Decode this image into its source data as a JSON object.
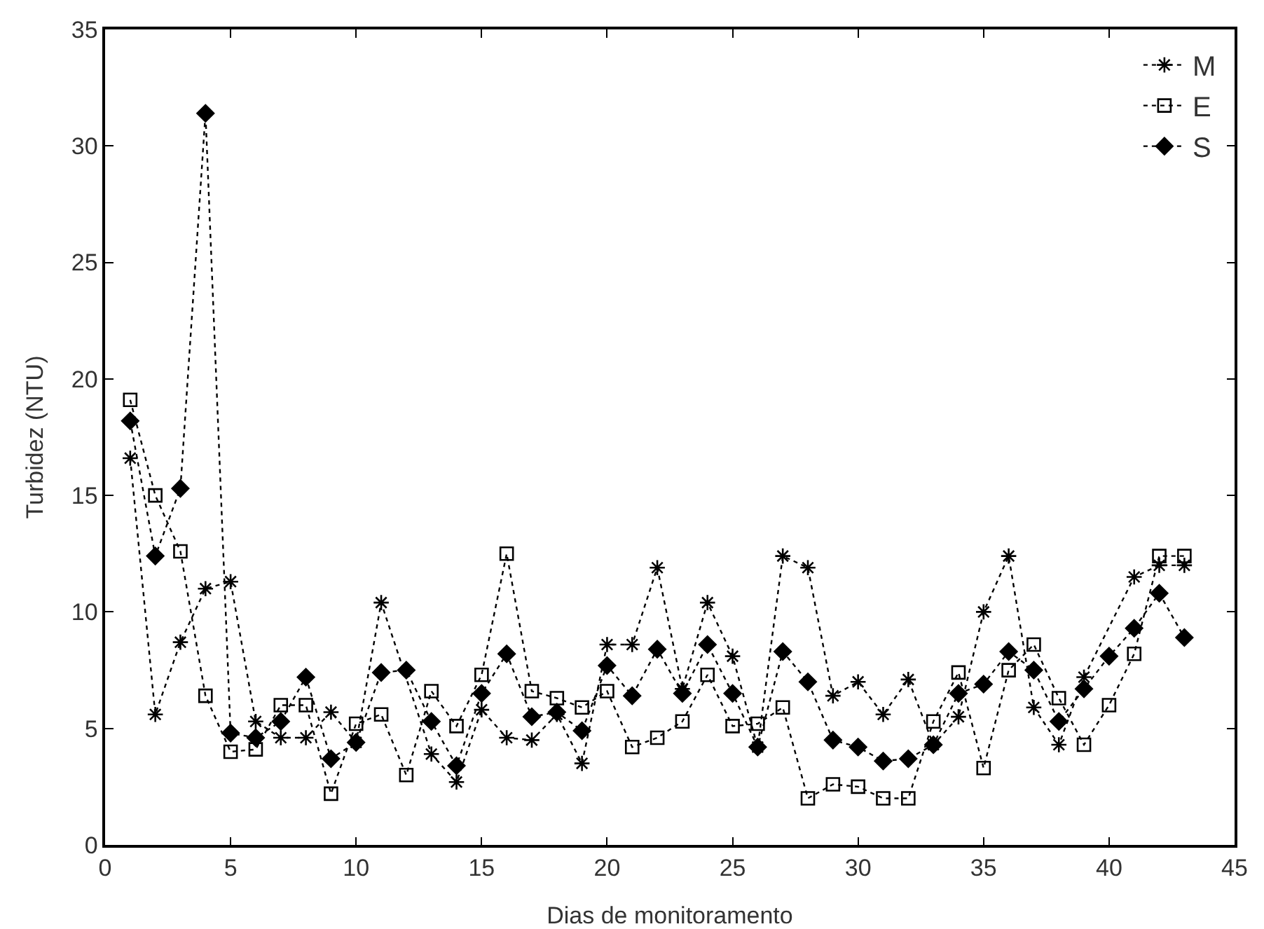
{
  "chart_data": {
    "type": "line",
    "xlabel": "Dias de monitoramento",
    "ylabel": "Turbidez (NTU)",
    "x": [
      1,
      2,
      3,
      4,
      5,
      6,
      7,
      8,
      9,
      10,
      11,
      12,
      13,
      14,
      15,
      16,
      17,
      18,
      19,
      20,
      21,
      22,
      23,
      24,
      25,
      26,
      27,
      28,
      29,
      30,
      31,
      32,
      33,
      34,
      35,
      36,
      37,
      38,
      39,
      40,
      41,
      42,
      43
    ],
    "xlim": [
      0,
      45
    ],
    "xticks": [
      0,
      5,
      10,
      15,
      20,
      25,
      30,
      35,
      40,
      45
    ],
    "ylim": [
      0,
      35
    ],
    "yticks": [
      0,
      5,
      10,
      15,
      20,
      25,
      30,
      35
    ],
    "grid": false,
    "legend": "top right",
    "line_style": "dotted",
    "series": [
      {
        "name": "M",
        "color": "#000000",
        "marker": "cross",
        "values": [
          16.6,
          5.6,
          8.7,
          11.0,
          11.3,
          5.3,
          4.6,
          4.6,
          5.7,
          4.4,
          10.4,
          null,
          3.9,
          2.7,
          5.8,
          4.6,
          4.5,
          5.6,
          3.5,
          8.6,
          8.6,
          11.9,
          6.7,
          10.4,
          8.1,
          4.2,
          12.4,
          11.9,
          6.4,
          7.0,
          5.6,
          7.1,
          4.3,
          5.5,
          10.0,
          12.4,
          5.9,
          4.3,
          7.2,
          null,
          11.5,
          12.0,
          12.0
        ]
      },
      {
        "name": "E",
        "color": "#000000",
        "marker": "square",
        "values": [
          19.1,
          15.0,
          12.6,
          6.4,
          4.0,
          4.1,
          6.0,
          6.0,
          2.2,
          5.2,
          5.6,
          3.0,
          6.6,
          5.1,
          7.3,
          12.5,
          6.6,
          6.3,
          5.9,
          6.6,
          4.2,
          4.6,
          5.3,
          7.3,
          5.1,
          5.2,
          5.9,
          2.0,
          2.6,
          2.5,
          2.0,
          2.0,
          5.3,
          7.4,
          3.3,
          7.5,
          8.6,
          6.3,
          4.3,
          6.0,
          8.2,
          12.4,
          12.4
        ]
      },
      {
        "name": "S",
        "color": "#000000",
        "marker": "diamond",
        "values": [
          18.2,
          12.4,
          15.3,
          31.4,
          4.8,
          4.6,
          5.3,
          7.2,
          3.7,
          4.4,
          7.4,
          7.5,
          5.3,
          3.4,
          6.5,
          8.2,
          5.5,
          5.7,
          4.9,
          7.7,
          6.4,
          8.4,
          6.5,
          8.6,
          6.5,
          4.2,
          8.3,
          7.0,
          4.5,
          4.2,
          3.6,
          3.7,
          4.3,
          6.5,
          6.9,
          8.3,
          7.5,
          5.3,
          6.7,
          8.1,
          9.3,
          10.8,
          8.9
        ]
      }
    ]
  }
}
